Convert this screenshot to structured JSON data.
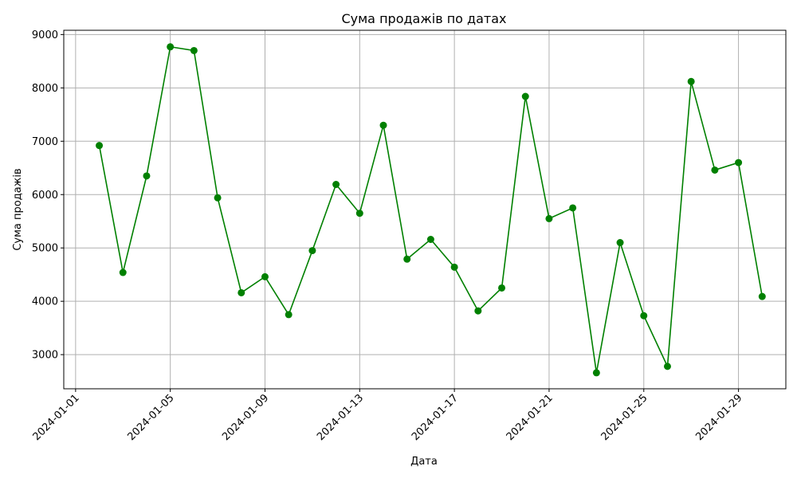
{
  "chart_data": {
    "type": "line",
    "title": "Сума продажів по датах",
    "xlabel": "Дата",
    "ylabel": "Сума продажів",
    "color": "#008000",
    "marker": "circle",
    "grid": true,
    "xlim": [
      "2024-01-00.5",
      "2024-01-31"
    ],
    "ylim": [
      2360,
      9080
    ],
    "xticks": [
      "2024-01-01",
      "2024-01-05",
      "2024-01-09",
      "2024-01-13",
      "2024-01-17",
      "2024-01-21",
      "2024-01-25",
      "2024-01-29"
    ],
    "yticks": [
      3000,
      4000,
      5000,
      6000,
      7000,
      8000,
      9000
    ],
    "series": [
      {
        "x": [
          "2024-01-02",
          "2024-01-03",
          "2024-01-04",
          "2024-01-05",
          "2024-01-06",
          "2024-01-07",
          "2024-01-08",
          "2024-01-09",
          "2024-01-10",
          "2024-01-11",
          "2024-01-12",
          "2024-01-13",
          "2024-01-14",
          "2024-01-15",
          "2024-01-16",
          "2024-01-17",
          "2024-01-18",
          "2024-01-19",
          "2024-01-20",
          "2024-01-21",
          "2024-01-22",
          "2024-01-23",
          "2024-01-24",
          "2024-01-25",
          "2024-01-26",
          "2024-01-27",
          "2024-01-28",
          "2024-01-29",
          "2024-01-30"
        ],
        "values": [
          6920,
          4540,
          6350,
          8770,
          8700,
          5940,
          4160,
          4460,
          3750,
          4950,
          6190,
          5650,
          7300,
          4790,
          5160,
          4640,
          3820,
          4250,
          7840,
          5550,
          5750,
          2660,
          5100,
          3730,
          2780,
          8120,
          6460,
          6600,
          4090
        ]
      }
    ]
  }
}
